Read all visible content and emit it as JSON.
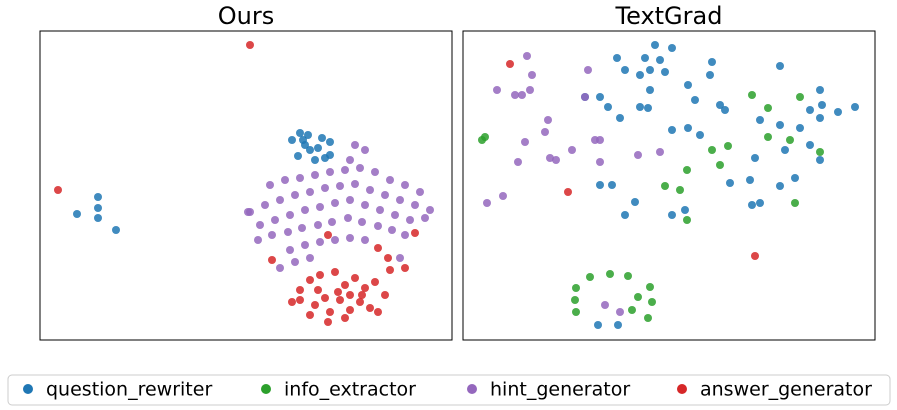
{
  "chart_data": [
    {
      "type": "scatter",
      "title": "Ours",
      "xlim": [
        40,
        452
      ],
      "ylim": [
        340,
        31
      ],
      "series": [
        {
          "name": "question_rewriter",
          "color": "#1f77b4",
          "x": [
            77,
            98,
            98,
            98,
            116,
            292,
            300,
            305,
            310,
            298,
            315,
            322,
            330,
            330,
            308,
            318,
            325,
            303
          ],
          "y": [
            214,
            197,
            208,
            218,
            230,
            140,
            133,
            145,
            150,
            156,
            160,
            138,
            142,
            155,
            135,
            148,
            158,
            140
          ]
        },
        {
          "name": "info_extractor",
          "color": "#2ca02c",
          "x": [],
          "y": []
        },
        {
          "name": "hint_generator",
          "color": "#9467bd",
          "x": [
            355,
            365,
            350,
            270,
            285,
            300,
            315,
            330,
            345,
            360,
            375,
            390,
            405,
            420,
            250,
            265,
            280,
            295,
            310,
            325,
            340,
            355,
            370,
            385,
            400,
            415,
            430,
            260,
            275,
            290,
            305,
            320,
            335,
            350,
            365,
            380,
            395,
            410,
            425,
            258,
            272,
            288,
            302,
            318,
            332,
            348,
            362,
            378,
            392,
            405,
            290,
            305,
            320,
            335,
            350,
            365,
            280,
            295,
            310,
            400,
            248
          ],
          "y": [
            145,
            150,
            160,
            185,
            180,
            178,
            175,
            172,
            170,
            168,
            172,
            180,
            185,
            192,
            212,
            205,
            200,
            195,
            192,
            188,
            186,
            184,
            190,
            195,
            200,
            205,
            210,
            225,
            220,
            215,
            210,
            207,
            203,
            200,
            205,
            210,
            215,
            220,
            218,
            240,
            235,
            232,
            228,
            225,
            222,
            218,
            222,
            226,
            230,
            235,
            250,
            245,
            242,
            240,
            238,
            240,
            268,
            262,
            258,
            258,
            212
          ]
        },
        {
          "name": "answer_generator",
          "color": "#d62728",
          "x": [
            250,
            58,
            272,
            328,
            378,
            415,
            405,
            388,
            390,
            300,
            310,
            320,
            335,
            345,
            355,
            365,
            375,
            385,
            300,
            315,
            325,
            340,
            350,
            360,
            370,
            330,
            310,
            345,
            378,
            292,
            318,
            338,
            362,
            350,
            328
          ],
          "y": [
            45,
            190,
            260,
            235,
            248,
            233,
            268,
            258,
            270,
            290,
            280,
            275,
            272,
            285,
            278,
            288,
            282,
            295,
            300,
            305,
            298,
            300,
            310,
            302,
            308,
            312,
            315,
            318,
            312,
            302,
            290,
            292,
            295,
            295,
            322
          ]
        }
      ]
    },
    {
      "type": "scatter",
      "title": "TextGrad",
      "xlim": [
        463,
        875
      ],
      "ylim": [
        340,
        31
      ],
      "series": [
        {
          "name": "question_rewriter",
          "color": "#1f77b4",
          "x": [
            655,
            672,
            617,
            645,
            660,
            665,
            650,
            625,
            640,
            712,
            710,
            688,
            780,
            820,
            855,
            838,
            822,
            585,
            600,
            650,
            608,
            640,
            695,
            720,
            725,
            688,
            672,
            700,
            620,
            648,
            760,
            780,
            810,
            800,
            820,
            810,
            785,
            820,
            755,
            730,
            750,
            795,
            780,
            600,
            612,
            635,
            625,
            672,
            685,
            760,
            752,
            598,
            618
          ],
          "y": [
            45,
            48,
            58,
            58,
            60,
            72,
            70,
            70,
            75,
            62,
            75,
            85,
            66,
            90,
            107,
            112,
            105,
            97,
            97,
            90,
            107,
            107,
            100,
            105,
            110,
            128,
            130,
            135,
            118,
            108,
            120,
            125,
            110,
            128,
            118,
            145,
            150,
            160,
            158,
            183,
            180,
            178,
            186,
            185,
            185,
            202,
            215,
            215,
            210,
            203,
            205,
            325,
            325
          ]
        },
        {
          "name": "info_extractor",
          "color": "#2ca02c",
          "x": [
            482,
            485,
            752,
            768,
            800,
            768,
            790,
            820,
            712,
            728,
            720,
            687,
            665,
            680,
            687,
            795,
            590,
            610,
            628,
            576,
            575,
            650,
            638,
            652,
            576,
            632,
            648
          ],
          "y": [
            140,
            137,
            95,
            108,
            97,
            137,
            140,
            152,
            150,
            146,
            165,
            170,
            186,
            190,
            220,
            203,
            277,
            274,
            276,
            288,
            300,
            287,
            297,
            302,
            312,
            310,
            318
          ]
        },
        {
          "name": "hint_generator",
          "color": "#9467bd",
          "x": [
            527,
            497,
            515,
            522,
            532,
            530,
            588,
            585,
            548,
            545,
            525,
            595,
            600,
            572,
            550,
            556,
            518,
            638,
            660,
            600,
            487,
            503,
            605,
            620
          ],
          "y": [
            56,
            90,
            95,
            95,
            75,
            90,
            70,
            97,
            120,
            132,
            142,
            140,
            140,
            150,
            158,
            160,
            162,
            155,
            152,
            162,
            203,
            196,
            305,
            312
          ]
        },
        {
          "name": "answer_generator",
          "color": "#d62728",
          "x": [
            510,
            568,
            755
          ],
          "y": [
            64,
            192,
            256
          ]
        }
      ]
    }
  ]
}
